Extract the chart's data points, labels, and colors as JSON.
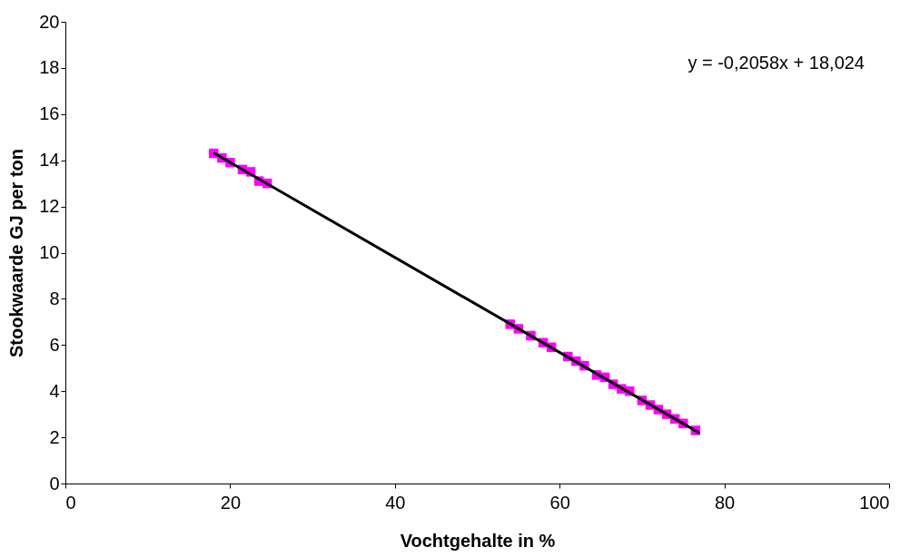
{
  "chart_data": {
    "type": "scatter",
    "xlabel": "Vochtgehalte in %",
    "ylabel": "Stookwaarde GJ per ton",
    "xlim": [
      0,
      100
    ],
    "xticks": [
      0,
      20,
      40,
      60,
      80,
      100
    ],
    "ylim": [
      0,
      20
    ],
    "yticks": [
      0,
      2,
      4,
      6,
      8,
      10,
      12,
      14,
      16,
      18,
      20
    ],
    "grid": false,
    "marker": "square",
    "annotations": [
      "y = -0,2058x + 18,024"
    ],
    "series": [
      {
        "color": "#ff00ff",
        "x": [
          18,
          19,
          20,
          21.5,
          22.5,
          23.5,
          24.5,
          54,
          55,
          56.5,
          58,
          59,
          61,
          62,
          63,
          64.5,
          65.5,
          66.5,
          67.5,
          68.5,
          70,
          71,
          72,
          73,
          74,
          75,
          76.5
        ],
        "values": [
          14.3,
          14.1,
          13.9,
          13.6,
          13.5,
          13.1,
          13.0,
          6.9,
          6.7,
          6.4,
          6.1,
          5.9,
          5.5,
          5.3,
          5.1,
          4.7,
          4.6,
          4.3,
          4.1,
          4.0,
          3.6,
          3.4,
          3.2,
          3.0,
          2.8,
          2.6,
          2.3
        ]
      },
      {
        "type": "line",
        "color": "#000000",
        "line_style": "solid",
        "marker": "none",
        "x": [
          18,
          77
        ],
        "values": [
          14.32,
          2.18
        ]
      }
    ]
  }
}
